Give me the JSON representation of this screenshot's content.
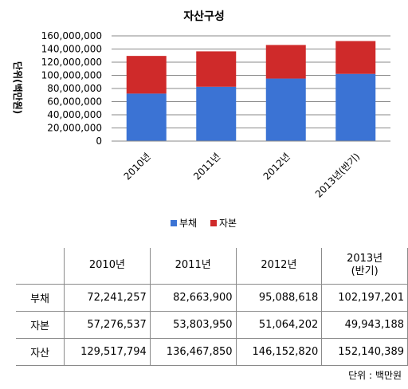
{
  "chart_data": {
    "type": "bar",
    "stacked": true,
    "title": "자산구성",
    "ylabel": "단위(백만원)",
    "categories": [
      "2010년",
      "2011년",
      "2012년",
      "2013년(반기)"
    ],
    "series": [
      {
        "name": "부채",
        "values": [
          72241257,
          82663900,
          95088618,
          102197201
        ],
        "color": "#3b73d4"
      },
      {
        "name": "자본",
        "values": [
          57276537,
          53803950,
          51064202,
          49943188
        ],
        "color": "#cf2a2a"
      }
    ],
    "ylim": [
      0,
      160000000
    ],
    "yticks": [
      "0",
      "20,000,000",
      "40,000,000",
      "60,000,000",
      "80,000,000",
      "100,000,000",
      "120,000,000",
      "140,000,000",
      "160,000,000"
    ],
    "grid": true,
    "legend": "bottom"
  },
  "table": {
    "headers": [
      "2010년",
      "2011년",
      "2012년",
      "2013년",
      "(반기)"
    ],
    "rows": [
      {
        "label": "부채",
        "values": [
          "72,241,257",
          "82,663,900",
          "95,088,618",
          "102,197,201"
        ]
      },
      {
        "label": "자본",
        "values": [
          "57,276,537",
          "53,803,950",
          "51,064,202",
          "49,943,188"
        ]
      },
      {
        "label": "자산",
        "values": [
          "129,517,794",
          "136,467,850",
          "146,152,820",
          "152,140,389"
        ]
      }
    ],
    "unit_note": "단위 : 백만원"
  }
}
